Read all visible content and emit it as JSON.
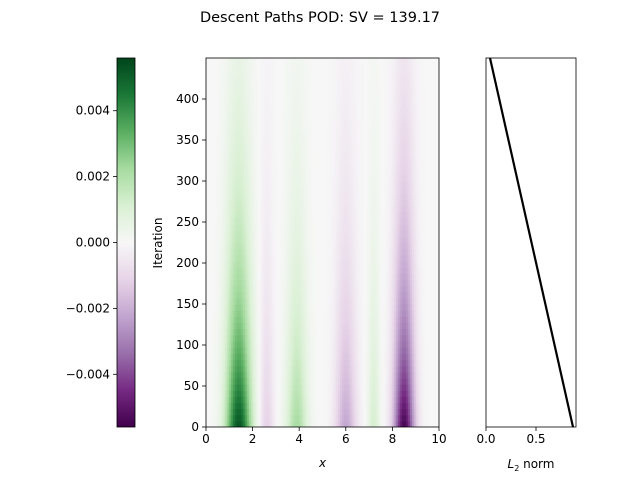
{
  "chart_data": [
    {
      "type": "heatmap",
      "title": "Descent Paths POD: SV = 139.17",
      "xlabel": "x",
      "ylabel": "Iteration",
      "xlim": [
        0,
        10
      ],
      "ylim": [
        0,
        450
      ],
      "x_ticks": [
        "0",
        "2",
        "4",
        "6",
        "8",
        "10"
      ],
      "y_ticks": [
        "0",
        "50",
        "100",
        "150",
        "200",
        "250",
        "300",
        "350",
        "400"
      ],
      "colormap": "PRGn",
      "value_range": [
        -0.0056,
        0.0056
      ],
      "bands": [
        {
          "x_center": 1.4,
          "width": 0.55,
          "peak": 0.0053
        },
        {
          "x_center": 2.6,
          "width": 0.3,
          "peak": -0.0012
        },
        {
          "x_center": 3.9,
          "width": 0.45,
          "peak": 0.0022
        },
        {
          "x_center": 6.0,
          "width": 0.45,
          "peak": -0.0022
        },
        {
          "x_center": 7.2,
          "width": 0.25,
          "peak": 0.0012
        },
        {
          "x_center": 8.5,
          "width": 0.45,
          "peak": -0.0055
        }
      ],
      "decay_scale_iterations": 200
    },
    {
      "type": "bar",
      "title": "",
      "colormap": "PRGn",
      "ticks": [
        "0.004",
        "0.002",
        "0.000",
        "−0.002",
        "−0.004"
      ],
      "tick_values": [
        0.004,
        0.002,
        0.0,
        -0.002,
        -0.004
      ],
      "range": [
        -0.0056,
        0.0056
      ]
    },
    {
      "type": "line",
      "title": "",
      "xlabel_prefix": "L",
      "xlabel_sub": "2",
      "xlabel_suffix": " norm",
      "xlim": [
        0,
        0.9
      ],
      "ylim": [
        0,
        450
      ],
      "x_ticks": [
        "0.0",
        "0.5"
      ],
      "x": [
        0.04,
        0.87
      ],
      "y": [
        450,
        0
      ],
      "color": "#000000"
    }
  ],
  "colors": {
    "pos_dark": "#00441b",
    "neg_dark": "#40004b",
    "mid": "#f7f7f7"
  }
}
